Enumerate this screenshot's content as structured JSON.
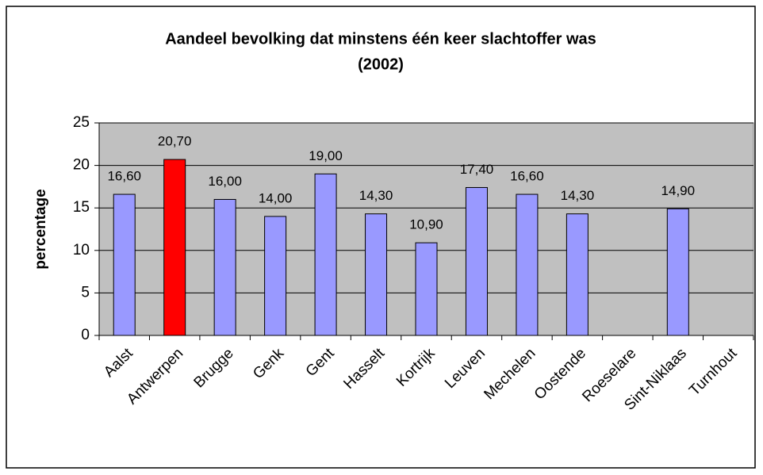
{
  "chart_data": {
    "type": "bar",
    "title": [
      "Aandeel bevolking dat minstens één keer slachtoffer was",
      "(2002)"
    ],
    "y_label": "percentage",
    "categories": [
      "Aalst",
      "Antwerpen",
      "Brugge",
      "Genk",
      "Gent",
      "Hasselt",
      "Kortrijk",
      "Leuven",
      "Mechelen",
      "Oostende",
      "Roeselare",
      "Sint-Niklaas",
      "Turnhout"
    ],
    "values": [
      16.6,
      20.7,
      16.0,
      14.0,
      19.0,
      14.3,
      10.9,
      17.4,
      16.6,
      14.3,
      null,
      14.9,
      null
    ],
    "value_labels": [
      "16,60",
      "20,70",
      "16,00",
      "14,00",
      "19,00",
      "14,30",
      "10,90",
      "17,40",
      "16,60",
      "14,30",
      null,
      "14,90",
      null
    ],
    "colors": [
      "#9999ff",
      "#ff0000",
      "#9999ff",
      "#9999ff",
      "#9999ff",
      "#9999ff",
      "#9999ff",
      "#9999ff",
      "#9999ff",
      "#9999ff",
      null,
      "#9999ff",
      null
    ],
    "ylim": [
      0,
      25
    ],
    "yticks": [
      0,
      5,
      10,
      15,
      20,
      25
    ],
    "grid": true,
    "plot_background": "#c0c0c0"
  }
}
